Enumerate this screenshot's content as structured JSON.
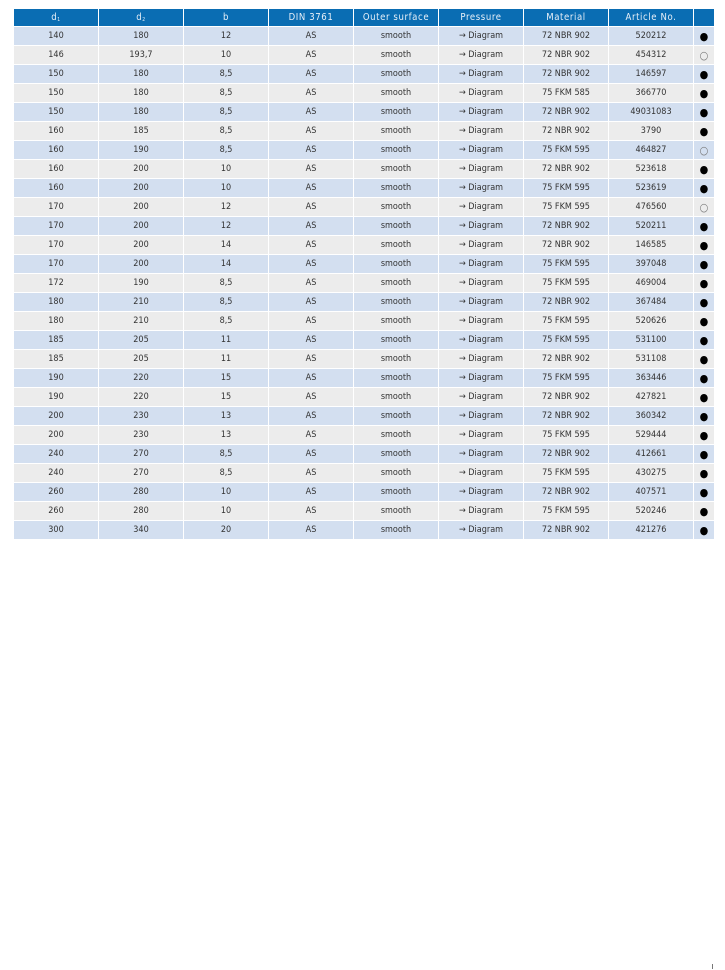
{
  "table": {
    "headers": [
      {
        "main": "d",
        "sub": "1"
      },
      {
        "main": "d",
        "sub": "2"
      },
      {
        "main": "b",
        "sub": ""
      },
      {
        "main": "DIN 3761",
        "sub": ""
      },
      {
        "main": "Outer surface",
        "sub": ""
      },
      {
        "main": "Pressure",
        "sub": ""
      },
      {
        "main": "Material",
        "sub": ""
      },
      {
        "main": "Article No.",
        "sub": ""
      },
      {
        "main": "",
        "sub": ""
      }
    ],
    "rows": [
      [
        "140",
        "180",
        "12",
        "AS",
        "smooth",
        "→ Diagram",
        "72 NBR 902",
        "520212",
        "●"
      ],
      [
        "146",
        "193,7",
        "10",
        "AS",
        "smooth",
        "→ Diagram",
        "72 NBR 902",
        "454312",
        "○"
      ],
      [
        "150",
        "180",
        "8,5",
        "AS",
        "smooth",
        "→ Diagram",
        "72 NBR 902",
        "146597",
        "●"
      ],
      [
        "150",
        "180",
        "8,5",
        "AS",
        "smooth",
        "→ Diagram",
        "75 FKM 585",
        "366770",
        "●"
      ],
      [
        "150",
        "180",
        "8,5",
        "AS",
        "smooth",
        "→ Diagram",
        "72 NBR 902",
        "49031083",
        "●"
      ],
      [
        "160",
        "185",
        "8,5",
        "AS",
        "smooth",
        "→ Diagram",
        "72 NBR 902",
        "3790",
        "●"
      ],
      [
        "160",
        "190",
        "8,5",
        "AS",
        "smooth",
        "→ Diagram",
        "75 FKM 595",
        "464827",
        "○"
      ],
      [
        "160",
        "200",
        "10",
        "AS",
        "smooth",
        "→ Diagram",
        "72 NBR 902",
        "523618",
        "●"
      ],
      [
        "160",
        "200",
        "10",
        "AS",
        "smooth",
        "→ Diagram",
        "75 FKM 595",
        "523619",
        "●"
      ],
      [
        "170",
        "200",
        "12",
        "AS",
        "smooth",
        "→ Diagram",
        "75 FKM 595",
        "476560",
        "○"
      ],
      [
        "170",
        "200",
        "12",
        "AS",
        "smooth",
        "→ Diagram",
        "72 NBR 902",
        "520211",
        "●"
      ],
      [
        "170",
        "200",
        "14",
        "AS",
        "smooth",
        "→ Diagram",
        "72 NBR 902",
        "146585",
        "●"
      ],
      [
        "170",
        "200",
        "14",
        "AS",
        "smooth",
        "→ Diagram",
        "75 FKM 595",
        "397048",
        "●"
      ],
      [
        "172",
        "190",
        "8,5",
        "AS",
        "smooth",
        "→ Diagram",
        "75 FKM 595",
        "469004",
        "●"
      ],
      [
        "180",
        "210",
        "8,5",
        "AS",
        "smooth",
        "→ Diagram",
        "72 NBR 902",
        "367484",
        "●"
      ],
      [
        "180",
        "210",
        "8,5",
        "AS",
        "smooth",
        "→ Diagram",
        "75 FKM 595",
        "520626",
        "●"
      ],
      [
        "185",
        "205",
        "11",
        "AS",
        "smooth",
        "→ Diagram",
        "75 FKM 595",
        "531100",
        "●"
      ],
      [
        "185",
        "205",
        "11",
        "AS",
        "smooth",
        "→ Diagram",
        "72 NBR 902",
        "531108",
        "●"
      ],
      [
        "190",
        "220",
        "15",
        "AS",
        "smooth",
        "→ Diagram",
        "75 FKM 595",
        "363446",
        "●"
      ],
      [
        "190",
        "220",
        "15",
        "AS",
        "smooth",
        "→ Diagram",
        "72 NBR 902",
        "427821",
        "●"
      ],
      [
        "200",
        "230",
        "13",
        "AS",
        "smooth",
        "→ Diagram",
        "72 NBR 902",
        "360342",
        "●"
      ],
      [
        "200",
        "230",
        "13",
        "AS",
        "smooth",
        "→ Diagram",
        "75 FKM 595",
        "529444",
        "●"
      ],
      [
        "240",
        "270",
        "8,5",
        "AS",
        "smooth",
        "→ Diagram",
        "72 NBR 902",
        "412661",
        "●"
      ],
      [
        "240",
        "270",
        "8,5",
        "AS",
        "smooth",
        "→ Diagram",
        "75 FKM 595",
        "430275",
        "●"
      ],
      [
        "260",
        "280",
        "10",
        "AS",
        "smooth",
        "→ Diagram",
        "72 NBR 902",
        "407571",
        "●"
      ],
      [
        "260",
        "280",
        "10",
        "AS",
        "smooth",
        "→ Diagram",
        "75 FKM 595",
        "520246",
        "●"
      ],
      [
        "300",
        "340",
        "20",
        "AS",
        "smooth",
        "→ Diagram",
        "72 NBR 902",
        "421276",
        "●"
      ]
    ]
  },
  "colors": {
    "header_bg": "#0a6db3",
    "row_odd": "#d3dff0",
    "row_even": "#ececec"
  }
}
